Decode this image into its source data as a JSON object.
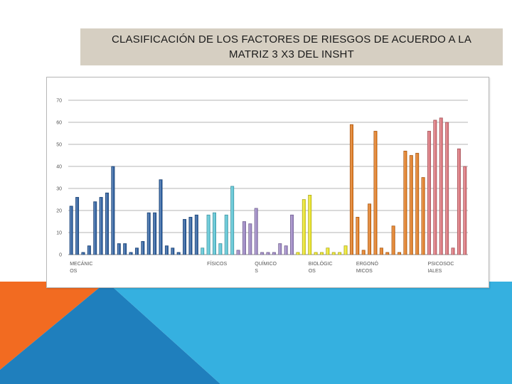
{
  "slide": {
    "title_line1": "CLASIFICACIÓN DE LOS FACTORES DE RIESGOS  DE  ACUERDO A LA",
    "title_line2": "MATRIZ  3 X3 DEL INSHT",
    "colors": {
      "title_bg": "#d6cfc2",
      "orange": "#f26b21",
      "blue_dark": "#1f7fbd",
      "blue_light": "#35b0e0"
    }
  },
  "chart_data": {
    "type": "bar",
    "title": "",
    "xlabel": "",
    "ylabel": "",
    "ylim": [
      0,
      70
    ],
    "yticks": [
      0,
      10,
      20,
      30,
      40,
      50,
      60,
      70
    ],
    "grid": true,
    "legend": "none",
    "category_labels": [
      {
        "lines": [
          "MECÁNIC",
          "OS"
        ],
        "at_bar": 0
      },
      {
        "lines": [
          "FÍSICOS"
        ],
        "at_bar": 23
      },
      {
        "lines": [
          "QUÍMICO",
          "S"
        ],
        "at_bar": 31
      },
      {
        "lines": [
          "BIOLÓGIC",
          "OS"
        ],
        "at_bar": 40
      },
      {
        "lines": [
          "ERGONÓ",
          "MICOS"
        ],
        "at_bar": 48
      },
      {
        "lines": [
          "PSICOSOC",
          "IALES"
        ],
        "at_bar": 60
      }
    ],
    "groups": [
      {
        "name": "MECÁNICOS",
        "color": "#2e5f9e",
        "values": [
          22,
          26,
          1,
          4,
          24,
          26,
          28,
          40,
          5,
          5,
          1,
          3,
          6,
          19,
          19,
          34,
          4,
          3,
          1,
          16,
          17,
          18
        ]
      },
      {
        "name": "FÍSICOS",
        "color": "#5bc4d4",
        "values": [
          3,
          18,
          19,
          5,
          18,
          31
        ]
      },
      {
        "name": "QUÍMICOS",
        "color": "#9b86c2",
        "values": [
          2,
          15,
          14,
          21,
          1,
          1,
          1,
          5,
          4,
          18
        ]
      },
      {
        "name": "BIOLÓGICOS",
        "color": "#e8e22a",
        "values": [
          1,
          25,
          27,
          1,
          1,
          3,
          1,
          1,
          4
        ]
      },
      {
        "name": "ERGONÓMICOS",
        "color": "#e07b22",
        "values": [
          59,
          17,
          2,
          23,
          56,
          3,
          1,
          13,
          1,
          47,
          45,
          46,
          35
        ]
      },
      {
        "name": "PSICOSOCIALES",
        "color": "#d9737a",
        "values": [
          56,
          61,
          62,
          60,
          3,
          48,
          40
        ]
      }
    ]
  }
}
